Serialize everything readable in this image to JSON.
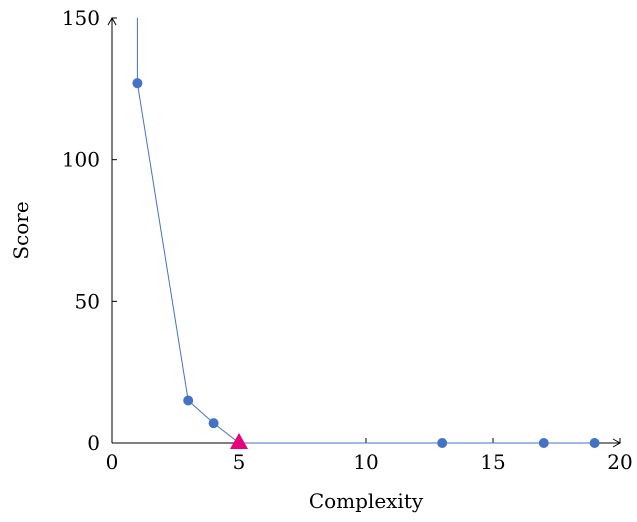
{
  "chart_data": {
    "type": "line",
    "xlabel": "Complexity",
    "ylabel": "Score",
    "xlim": [
      0,
      20
    ],
    "ylim": [
      0,
      150
    ],
    "xticks": [
      0,
      5,
      10,
      15,
      20
    ],
    "yticks": [
      0,
      50,
      100,
      150
    ],
    "grid": false,
    "series": [
      {
        "color": "#4472c4",
        "marker": "circle",
        "x": [
          1,
          3,
          4,
          5,
          13,
          17,
          19
        ],
        "y": [
          127,
          15,
          7,
          0,
          0,
          0,
          0
        ]
      }
    ],
    "highlight": {
      "x": 5,
      "y": 0,
      "marker": "triangle",
      "color": "#e6007e"
    },
    "line_extends_above_ylim_at_x": 1,
    "axis_color": "#000000"
  }
}
